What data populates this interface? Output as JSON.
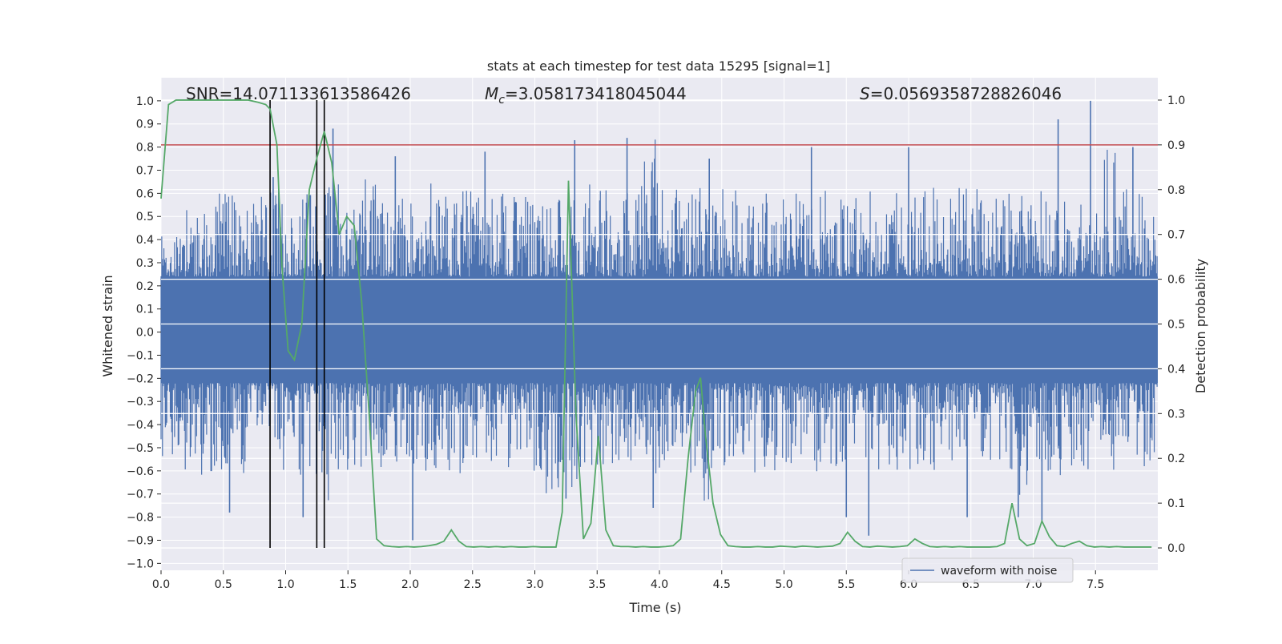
{
  "chart_data": {
    "type": "line",
    "title": "stats at each timestep for test data 15295 [signal=1]",
    "xlabel": "Time (s)",
    "ylabel_left": "Whitened strain",
    "ylabel_right": "Detection probability",
    "xlim": [
      0,
      8
    ],
    "ylim_left": [
      -1.03,
      1.1
    ],
    "ylim_right": [
      -0.05,
      1.05
    ],
    "x_ticks": [
      "0.0",
      "0.5",
      "1.0",
      "1.5",
      "2.0",
      "2.5",
      "3.0",
      "3.5",
      "4.0",
      "4.5",
      "5.0",
      "5.5",
      "6.0",
      "6.5",
      "7.0",
      "7.5"
    ],
    "x_tick_values": [
      0,
      0.5,
      1,
      1.5,
      2,
      2.5,
      3,
      3.5,
      4,
      4.5,
      5,
      5.5,
      6,
      6.5,
      7,
      7.5
    ],
    "y_left_ticks": [
      "1.0",
      "0.9",
      "0.8",
      "0.7",
      "0.6",
      "0.5",
      "0.4",
      "0.3",
      "0.2",
      "0.1",
      "0.0",
      "−0.1",
      "−0.2",
      "−0.3",
      "−0.4",
      "−0.5",
      "−0.6",
      "−0.7",
      "−0.8",
      "−0.9",
      "−1.0"
    ],
    "y_left_tick_values": [
      1.0,
      0.9,
      0.8,
      0.7,
      0.6,
      0.5,
      0.4,
      0.3,
      0.2,
      0.1,
      0.0,
      -0.1,
      -0.2,
      -0.3,
      -0.4,
      -0.5,
      -0.6,
      -0.7,
      -0.8,
      -0.9,
      -1.0
    ],
    "y_right_ticks": [
      "1.0",
      "0.9",
      "0.8",
      "0.7",
      "0.6",
      "0.5",
      "0.4",
      "0.3",
      "0.2",
      "0.1",
      "0.0"
    ],
    "y_right_tick_values": [
      1.0,
      0.9,
      0.8,
      0.7,
      0.6,
      0.5,
      0.4,
      0.3,
      0.2,
      0.1,
      0.0
    ],
    "grid": true,
    "annotations": {
      "snr": "SNR=14.071133613586426",
      "mc_symbol": "M",
      "mc_subscript": "c",
      "mc_value": "=3.058173418045044",
      "s_symbol": "S",
      "s_value": "=0.0569358728826046"
    },
    "legend": {
      "placement": "lower-right",
      "entries": [
        "waveform with noise"
      ]
    },
    "threshold_right": 0.9,
    "vertical_markers_x": [
      0.875,
      1.25,
      1.31
    ],
    "waveform": {
      "name": "waveform with noise",
      "duration_s": 8,
      "envelope_pos": [
        0.42,
        0.55,
        0.6,
        0.62,
        0.6,
        0.63,
        0.6,
        0.62,
        0.64,
        0.6,
        0.68,
        0.62,
        0.6,
        0.65,
        0.6,
        0.62,
        0.58,
        0.6,
        0.62,
        0.63,
        0.62,
        0.65,
        0.62,
        0.6,
        0.84,
        0.62,
        0.6,
        0.63,
        0.62,
        0.6,
        0.62,
        0.64,
        0.6,
        0.62,
        0.6,
        0.62,
        0.62,
        0.6,
        0.65,
        0.62,
        0.65,
        0.63,
        0.62,
        0.6,
        0.65,
        0.62,
        0.6,
        0.8,
        0.62,
        0.6
      ],
      "envelope_neg": [
        -0.55,
        -0.6,
        -0.62,
        -0.6,
        -0.62,
        -0.6,
        -0.6,
        -0.62,
        -0.75,
        -0.62,
        -0.6,
        -0.6,
        -0.6,
        -0.62,
        -0.6,
        -0.62,
        -0.58,
        -0.6,
        -0.62,
        -0.7,
        -0.72,
        -0.6,
        -0.6,
        -0.6,
        -0.62,
        -0.6,
        -0.62,
        -0.75,
        -0.6,
        -0.62,
        -0.6,
        -0.6,
        -0.62,
        -0.6,
        -0.6,
        -0.6,
        -0.62,
        -0.6,
        -0.6,
        -0.62,
        -0.6,
        -0.6,
        -0.62,
        -0.75,
        -0.6,
        -0.62,
        -0.6,
        -0.6,
        -0.62,
        -0.6
      ],
      "spikes": [
        {
          "x": 0.55,
          "y": -0.78
        },
        {
          "x": 0.9,
          "y": 0.67
        },
        {
          "x": 1.14,
          "y": -0.8
        },
        {
          "x": 1.38,
          "y": 0.88
        },
        {
          "x": 1.88,
          "y": 0.76
        },
        {
          "x": 2.02,
          "y": -0.9
        },
        {
          "x": 2.6,
          "y": 0.78
        },
        {
          "x": 3.25,
          "y": -0.72
        },
        {
          "x": 3.32,
          "y": 0.83
        },
        {
          "x": 3.74,
          "y": 0.84
        },
        {
          "x": 3.95,
          "y": -0.76
        },
        {
          "x": 4.4,
          "y": 0.75
        },
        {
          "x": 5.22,
          "y": 0.8
        },
        {
          "x": 5.5,
          "y": -0.8
        },
        {
          "x": 5.68,
          "y": -0.88
        },
        {
          "x": 6.0,
          "y": 0.8
        },
        {
          "x": 6.47,
          "y": -0.8
        },
        {
          "x": 6.88,
          "y": -0.8
        },
        {
          "x": 7.07,
          "y": -0.82
        },
        {
          "x": 7.2,
          "y": 0.92
        },
        {
          "x": 7.46,
          "y": 1.0
        },
        {
          "x": 7.8,
          "y": 0.8
        }
      ]
    },
    "series": [
      {
        "name": "Detection probability",
        "axis": "right",
        "color": "#55a868",
        "x": [
          0.0,
          0.06,
          0.12,
          0.2,
          0.3,
          0.4,
          0.5,
          0.6,
          0.7,
          0.78,
          0.84,
          0.875,
          0.93,
          0.97,
          1.02,
          1.07,
          1.13,
          1.19,
          1.25,
          1.31,
          1.37,
          1.43,
          1.49,
          1.55,
          1.61,
          1.67,
          1.73,
          1.79,
          1.85,
          1.91,
          1.97,
          2.03,
          2.09,
          2.15,
          2.21,
          2.27,
          2.33,
          2.39,
          2.45,
          2.51,
          2.57,
          2.63,
          2.69,
          2.75,
          2.81,
          2.87,
          2.93,
          2.99,
          3.05,
          3.11,
          3.17,
          3.22,
          3.27,
          3.33,
          3.39,
          3.45,
          3.51,
          3.57,
          3.63,
          3.69,
          3.75,
          3.81,
          3.87,
          3.93,
          3.99,
          4.05,
          4.11,
          4.17,
          4.23,
          4.29,
          4.33,
          4.37,
          4.43,
          4.49,
          4.55,
          4.61,
          4.67,
          4.73,
          4.79,
          4.85,
          4.91,
          4.97,
          5.03,
          5.09,
          5.15,
          5.21,
          5.27,
          5.33,
          5.39,
          5.45,
          5.51,
          5.57,
          5.63,
          5.69,
          5.75,
          5.81,
          5.87,
          5.93,
          5.99,
          6.05,
          6.11,
          6.17,
          6.23,
          6.29,
          6.35,
          6.41,
          6.47,
          6.53,
          6.59,
          6.65,
          6.71,
          6.77,
          6.83,
          6.89,
          6.95,
          7.01,
          7.07,
          7.13,
          7.19,
          7.25,
          7.31,
          7.37,
          7.43,
          7.49,
          7.55,
          7.61,
          7.67,
          7.73,
          7.79,
          7.85,
          7.91,
          7.95
        ],
        "y": [
          0.78,
          0.99,
          1.0,
          1.0,
          1.0,
          1.0,
          1.0,
          1.0,
          1.0,
          0.995,
          0.99,
          0.98,
          0.9,
          0.63,
          0.44,
          0.42,
          0.5,
          0.8,
          0.87,
          0.93,
          0.86,
          0.7,
          0.74,
          0.72,
          0.55,
          0.3,
          0.02,
          0.005,
          0.003,
          0.002,
          0.003,
          0.002,
          0.003,
          0.005,
          0.008,
          0.015,
          0.04,
          0.015,
          0.003,
          0.002,
          0.003,
          0.002,
          0.003,
          0.002,
          0.003,
          0.002,
          0.002,
          0.003,
          0.002,
          0.002,
          0.002,
          0.08,
          0.82,
          0.3,
          0.02,
          0.055,
          0.25,
          0.04,
          0.005,
          0.003,
          0.003,
          0.002,
          0.003,
          0.002,
          0.002,
          0.003,
          0.005,
          0.02,
          0.2,
          0.35,
          0.38,
          0.25,
          0.1,
          0.03,
          0.005,
          0.003,
          0.002,
          0.002,
          0.003,
          0.002,
          0.002,
          0.004,
          0.003,
          0.002,
          0.004,
          0.003,
          0.002,
          0.003,
          0.004,
          0.01,
          0.035,
          0.015,
          0.003,
          0.002,
          0.004,
          0.003,
          0.002,
          0.003,
          0.005,
          0.02,
          0.01,
          0.003,
          0.002,
          0.003,
          0.002,
          0.003,
          0.002,
          0.002,
          0.002,
          0.002,
          0.003,
          0.01,
          0.1,
          0.02,
          0.005,
          0.01,
          0.06,
          0.025,
          0.005,
          0.003,
          0.01,
          0.015,
          0.005,
          0.002,
          0.003,
          0.002,
          0.003,
          0.002,
          0.002,
          0.002,
          0.002,
          0.002
        ]
      }
    ]
  }
}
